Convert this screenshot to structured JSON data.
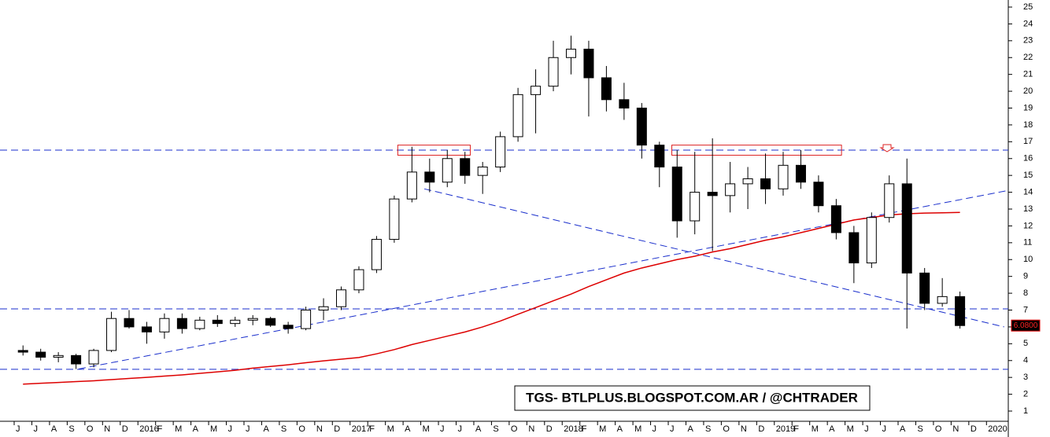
{
  "chart_data": {
    "type": "candlestick",
    "title": "TGS- BTLPLUS.BLOGSPOT.COM.AR / @CHTRADER",
    "categories": [
      "J",
      "J",
      "A",
      "S",
      "O",
      "N",
      "D",
      "2016",
      "F",
      "M",
      "A",
      "M",
      "J",
      "J",
      "A",
      "S",
      "O",
      "N",
      "D",
      "2017",
      "F",
      "M",
      "A",
      "M",
      "J",
      "J",
      "A",
      "S",
      "O",
      "N",
      "D",
      "2018",
      "F",
      "M",
      "A",
      "M",
      "J",
      "J",
      "A",
      "S",
      "O",
      "N",
      "D",
      "2019",
      "F",
      "M",
      "A",
      "M",
      "J",
      "J",
      "A",
      "S",
      "O",
      "N",
      "D",
      "2020"
    ],
    "open": [
      4.6,
      4.5,
      4.2,
      4.3,
      3.8,
      4.6,
      6.5,
      6.0,
      5.7,
      6.5,
      5.9,
      6.4,
      6.2,
      6.4,
      6.5,
      6.1,
      5.9,
      7.0,
      7.2,
      8.2,
      9.4,
      11.2,
      13.6,
      15.2,
      14.6,
      16.0,
      15.0,
      15.5,
      17.3,
      19.8,
      20.3,
      22.0,
      22.5,
      20.8,
      19.5,
      19.0,
      16.8,
      15.5,
      12.3,
      14.0,
      13.8,
      14.5,
      14.8,
      14.2,
      15.6,
      14.6,
      13.2,
      11.6,
      9.8,
      12.5,
      14.5,
      9.2,
      7.4,
      7.8,
      null,
      null
    ],
    "high": [
      4.9,
      4.7,
      4.5,
      4.4,
      4.7,
      6.9,
      7.0,
      6.3,
      6.8,
      6.8,
      6.6,
      6.7,
      6.6,
      6.7,
      6.6,
      6.3,
      7.2,
      7.7,
      8.4,
      9.6,
      11.4,
      13.8,
      16.7,
      16.0,
      16.5,
      16.4,
      15.8,
      17.6,
      20.2,
      21.3,
      23.0,
      23.3,
      23.0,
      21.5,
      20.5,
      19.3,
      17.0,
      16.5,
      16.4,
      17.2,
      15.8,
      15.5,
      16.3,
      16.4,
      16.5,
      15.0,
      13.6,
      12.0,
      12.8,
      15.0,
      16.0,
      9.5,
      8.9,
      8.1,
      null,
      null
    ],
    "low": [
      4.3,
      4.0,
      3.9,
      3.5,
      3.6,
      4.5,
      5.9,
      5.0,
      5.3,
      5.6,
      5.8,
      6.0,
      6.0,
      6.1,
      6.0,
      5.6,
      5.8,
      6.4,
      7.0,
      8.0,
      9.2,
      11.0,
      13.4,
      14.0,
      14.3,
      14.5,
      13.9,
      15.2,
      17.0,
      17.5,
      20.0,
      21.0,
      18.5,
      18.8,
      18.3,
      16.0,
      14.3,
      11.3,
      11.5,
      10.5,
      12.8,
      13.0,
      13.3,
      13.8,
      14.2,
      12.8,
      11.2,
      8.6,
      9.5,
      12.2,
      5.9,
      7.0,
      7.2,
      5.9,
      null,
      null
    ],
    "close": [
      4.5,
      4.2,
      4.3,
      3.8,
      4.6,
      6.5,
      6.0,
      5.7,
      6.5,
      5.9,
      6.4,
      6.2,
      6.4,
      6.5,
      6.1,
      5.9,
      7.0,
      7.2,
      8.2,
      9.4,
      11.2,
      13.6,
      15.2,
      14.6,
      16.0,
      15.0,
      15.5,
      17.3,
      19.8,
      20.3,
      22.0,
      22.5,
      20.8,
      19.5,
      19.0,
      16.8,
      15.5,
      12.3,
      14.0,
      13.8,
      14.5,
      14.8,
      14.2,
      15.6,
      14.6,
      13.2,
      11.6,
      9.8,
      12.5,
      14.5,
      9.2,
      7.4,
      7.8,
      6.08,
      null,
      null
    ],
    "ma": [
      2.6,
      2.65,
      2.7,
      2.75,
      2.8,
      2.87,
      2.94,
      3.0,
      3.08,
      3.15,
      3.24,
      3.33,
      3.42,
      3.55,
      3.65,
      3.75,
      3.87,
      3.98,
      4.08,
      4.18,
      4.4,
      4.65,
      4.95,
      5.2,
      5.45,
      5.7,
      6.0,
      6.35,
      6.75,
      7.15,
      7.55,
      7.95,
      8.4,
      8.8,
      9.2,
      9.5,
      9.75,
      10.0,
      10.2,
      10.45,
      10.65,
      10.9,
      11.15,
      11.35,
      11.6,
      11.85,
      12.1,
      12.35,
      12.5,
      12.65,
      12.72,
      12.76,
      12.78,
      12.8,
      null,
      null
    ],
    "ma_color": "#dd0000",
    "last_price": {
      "value": 6.08,
      "label": "6.0800"
    },
    "levels": [
      16.5,
      7.07,
      3.48
    ],
    "trendlines": [
      {
        "x": [
          3.15,
          55.7
        ],
        "values": [
          3.5,
          14.1
        ]
      },
      {
        "x": [
          22.7,
          55.5
        ],
        "values": [
          14.2,
          6.0
        ]
      }
    ],
    "zones": [
      {
        "x": [
          21.2,
          25.3
        ],
        "values": [
          16.2,
          16.8
        ]
      },
      {
        "x": [
          36.7,
          46.3
        ],
        "values": [
          16.2,
          16.8
        ]
      }
    ],
    "line_color": "#1a2fcc",
    "zone_color": "#dd2222",
    "ylim": [
      0.44,
      25.42
    ],
    "yticks": [
      1,
      2,
      3,
      4,
      5,
      6,
      7,
      8,
      9,
      10,
      11,
      12,
      13,
      14,
      15,
      16,
      17,
      18,
      19,
      20,
      21,
      22,
      23,
      24,
      25
    ]
  }
}
